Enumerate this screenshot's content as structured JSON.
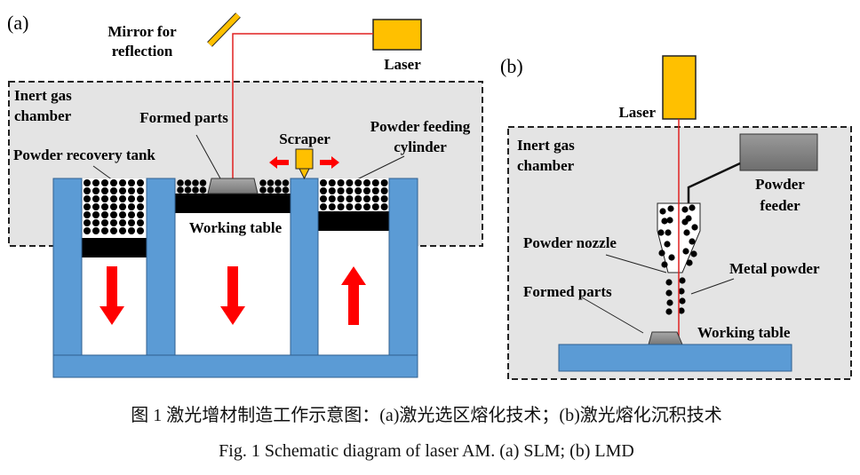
{
  "panel_a": {
    "tag": "(a)",
    "mirror_line1": "Mirror for",
    "mirror_line2": "reflection",
    "laser": "Laser",
    "chamber_line1": "Inert gas",
    "chamber_line2": "chamber",
    "formed_parts": "Formed parts",
    "scraper": "Scraper",
    "feeding_line1": "Powder feeding",
    "feeding_line2": "cylinder",
    "recovery_tank": "Powder recovery tank",
    "working_table": "Working table"
  },
  "panel_b": {
    "tag": "(b)",
    "laser": "Laser",
    "chamber_line1": "Inert gas",
    "chamber_line2": "chamber",
    "feeder_line1": "Powder",
    "feeder_line2": "feeder",
    "nozzle": "Powder nozzle",
    "metal_powder": "Metal powder",
    "formed_parts": "Formed parts",
    "working_table": "Working table"
  },
  "caption": {
    "chinese": "图 1  激光增材制造工作示意图：(a)激光选区熔化技术；(b)激光熔化沉积技术",
    "english": "Fig. 1 Schematic diagram of laser AM. (a) SLM; (b) LMD"
  },
  "colors": {
    "laser": "#FFC000",
    "beam": "#E02020",
    "wall": "#5B9BD5",
    "chamber": "#E4E4E4",
    "arrow": "#FF0000"
  }
}
